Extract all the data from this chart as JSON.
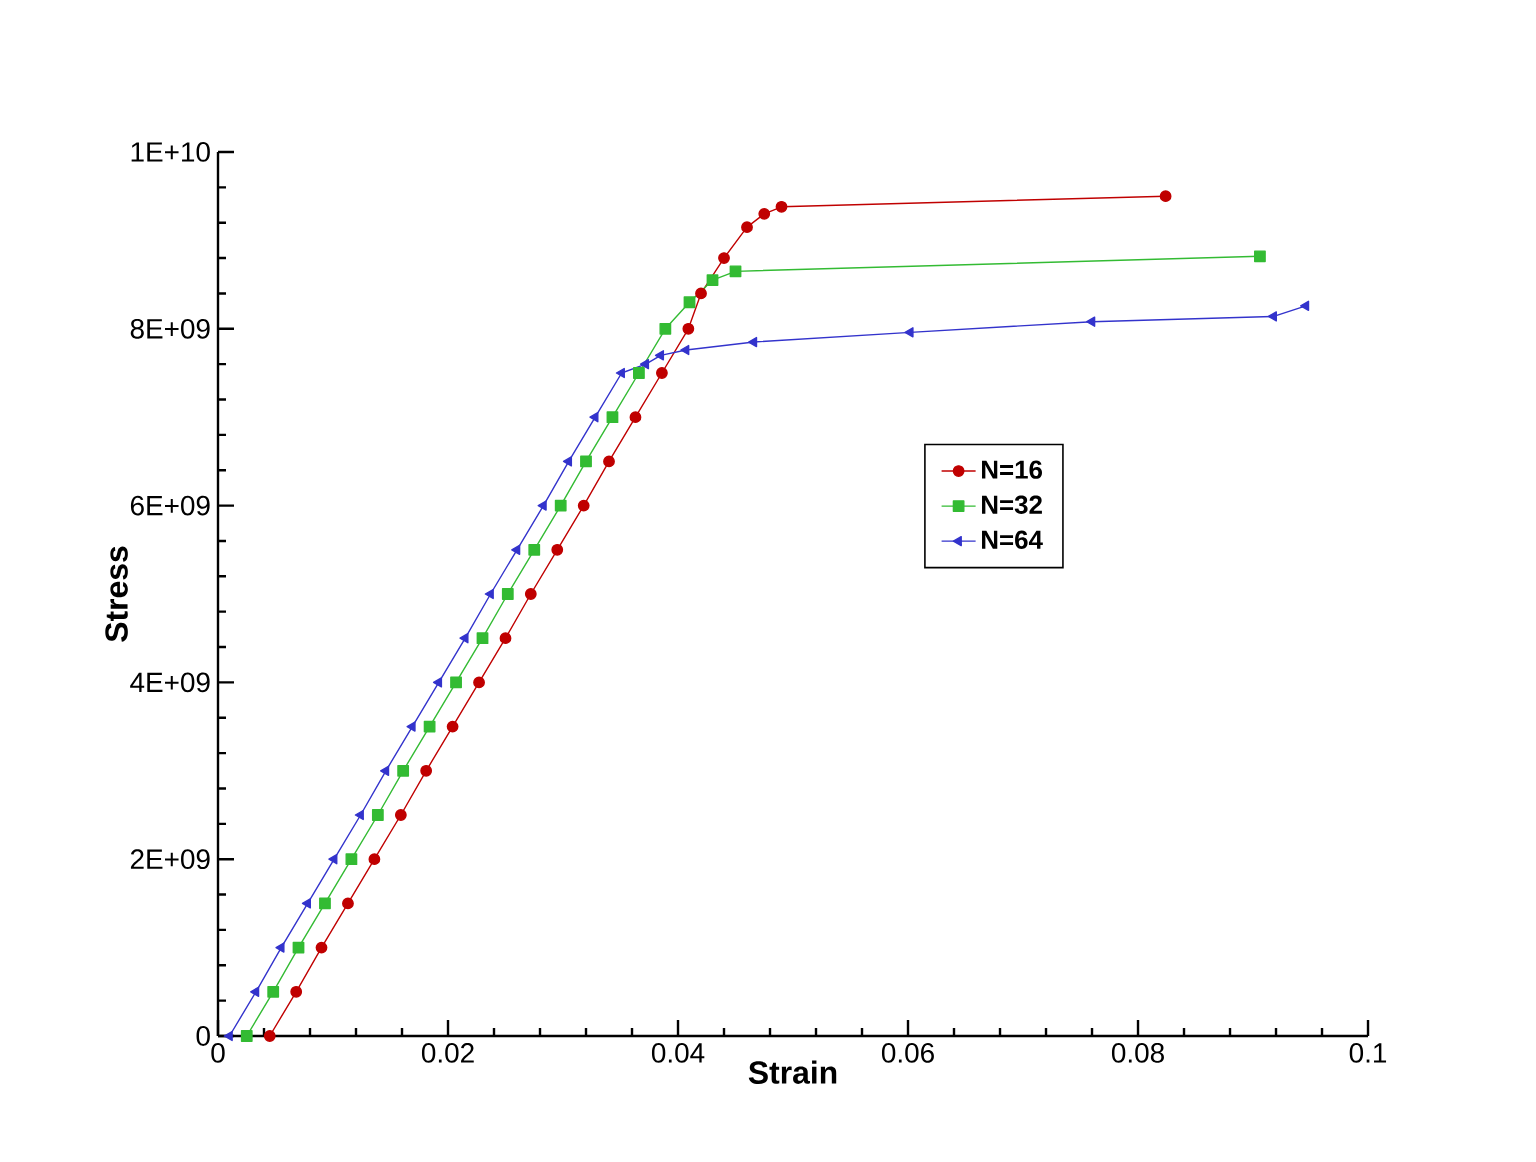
{
  "chart_data": {
    "type": "line",
    "xlabel": "Strain",
    "ylabel": "Stress",
    "xlim": [
      0,
      0.1
    ],
    "ylim": [
      0,
      10000000000.0
    ],
    "xticks": [
      0,
      0.02,
      0.04,
      0.06,
      0.08,
      0.1
    ],
    "yticks": [
      {
        "value": 0,
        "label": "0"
      },
      {
        "value": 2000000000.0,
        "label": "2E+09"
      },
      {
        "value": 4000000000.0,
        "label": "4E+09"
      },
      {
        "value": 6000000000.0,
        "label": "6E+09"
      },
      {
        "value": 8000000000.0,
        "label": "8E+09"
      },
      {
        "value": 10000000000.0,
        "label": "1E+10"
      }
    ],
    "legend": "right",
    "grid": false,
    "series": [
      {
        "name": "N=16",
        "color": "#c00000",
        "marker": "circle",
        "x": [
          0.0045,
          0.0068,
          0.009,
          0.0113,
          0.0136,
          0.0159,
          0.0181,
          0.0204,
          0.0227,
          0.025,
          0.0272,
          0.0295,
          0.0318,
          0.034,
          0.0363,
          0.0386,
          0.0409,
          0.042,
          0.044,
          0.046,
          0.0475,
          0.049,
          0.0824
        ],
        "values": [
          0,
          500000000.0,
          1000000000.0,
          1500000000.0,
          2000000000.0,
          2500000000.0,
          3000000000.0,
          3500000000.0,
          4000000000.0,
          4500000000.0,
          5000000000.0,
          5500000000.0,
          6000000000.0,
          6500000000.0,
          7000000000.0,
          7500000000.0,
          8000000000.0,
          8400000000.0,
          8800000000.0,
          9150000000.0,
          9300000000.0,
          9380000000.0,
          9500000000.0
        ]
      },
      {
        "name": "N=32",
        "color": "#33bb33",
        "marker": "square",
        "x": [
          0.0025,
          0.0048,
          0.007,
          0.0093,
          0.0116,
          0.0139,
          0.0161,
          0.0184,
          0.0207,
          0.023,
          0.0252,
          0.0275,
          0.0298,
          0.032,
          0.0343,
          0.0366,
          0.0389,
          0.041,
          0.043,
          0.045,
          0.0906
        ],
        "values": [
          0,
          500000000.0,
          1000000000.0,
          1500000000.0,
          2000000000.0,
          2500000000.0,
          3000000000.0,
          3500000000.0,
          4000000000.0,
          4500000000.0,
          5000000000.0,
          5500000000.0,
          6000000000.0,
          6500000000.0,
          7000000000.0,
          7500000000.0,
          8000000000.0,
          8300000000.0,
          8550000000.0,
          8650000000.0,
          8820000000.0
        ]
      },
      {
        "name": "N=64",
        "color": "#3333cc",
        "marker": "triangle",
        "x": [
          0.001,
          0.0033,
          0.0055,
          0.0078,
          0.0101,
          0.0124,
          0.0146,
          0.0169,
          0.0192,
          0.0215,
          0.0237,
          0.026,
          0.0283,
          0.0305,
          0.0328,
          0.0351,
          0.0372,
          0.0385,
          0.0407,
          0.0466,
          0.0602,
          0.076,
          0.0918,
          0.0946
        ],
        "values": [
          0,
          500000000.0,
          1000000000.0,
          1500000000.0,
          2000000000.0,
          2500000000.0,
          3000000000.0,
          3500000000.0,
          4000000000.0,
          4500000000.0,
          5000000000.0,
          5500000000.0,
          6000000000.0,
          6500000000.0,
          7000000000.0,
          7500000000.0,
          7600000000.0,
          7700000000.0,
          7760000000.0,
          7850000000.0,
          7960000000.0,
          8080000000.0,
          8140000000.0,
          8260000000.0
        ]
      }
    ]
  }
}
